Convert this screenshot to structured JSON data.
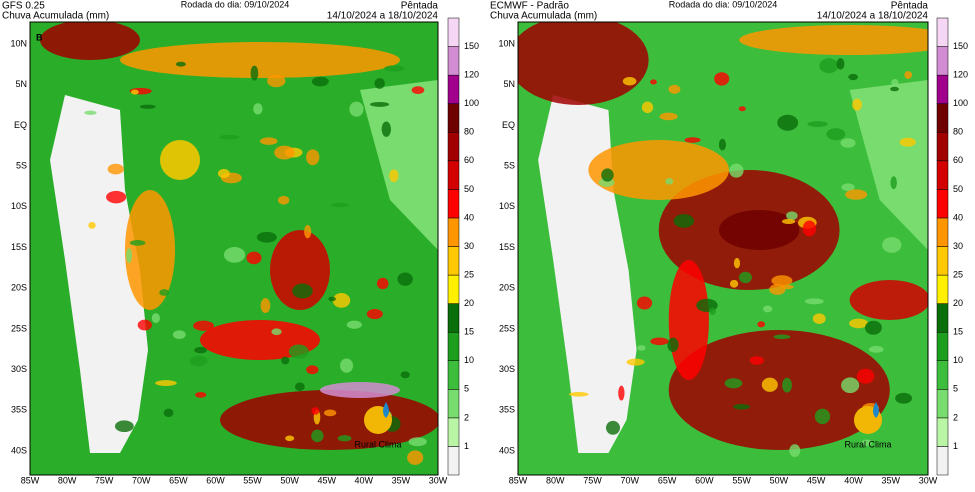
{
  "panels": [
    {
      "model": "GFS 0.25",
      "variable": "Chuva Acumulada (mm)",
      "run": "Rodada do dia: 09/10/2024",
      "period_name": "Pêntada",
      "period": "14/10/2024 a 18/10/2024",
      "panel_label": "B",
      "logo": "Rural Clima"
    },
    {
      "model": "ECMWF - Padrão",
      "variable": "Chuva Acumulada (mm)",
      "run": "Rodada do dia: 09/10/2024",
      "period_name": "Pêntada",
      "period": "14/10/2024 a 18/10/2024",
      "logo": "Rural Clima"
    }
  ],
  "lat_labels": [
    "10N",
    "5N",
    "EQ",
    "5S",
    "10S",
    "15S",
    "20S",
    "25S",
    "30S",
    "35S",
    "40S"
  ],
  "lon_labels": [
    "85W",
    "80W",
    "75W",
    "70W",
    "65W",
    "60W",
    "55W",
    "50W",
    "45W",
    "40W",
    "35W",
    "30W"
  ],
  "colorbar": {
    "labels": [
      "1",
      "2",
      "5",
      "10",
      "15",
      "20",
      "25",
      "30",
      "40",
      "50",
      "60",
      "80",
      "100",
      "120",
      "150"
    ],
    "colors": [
      "#f2f2f2",
      "#b9f5a5",
      "#78dc6e",
      "#3cbe3c",
      "#1e9e1e",
      "#0a6e0a",
      "#fff000",
      "#ffc800",
      "#ff9600",
      "#ff0000",
      "#d20000",
      "#a00000",
      "#6e0000",
      "#a0008c",
      "#d28cd2",
      "#f5d7f5"
    ]
  }
}
